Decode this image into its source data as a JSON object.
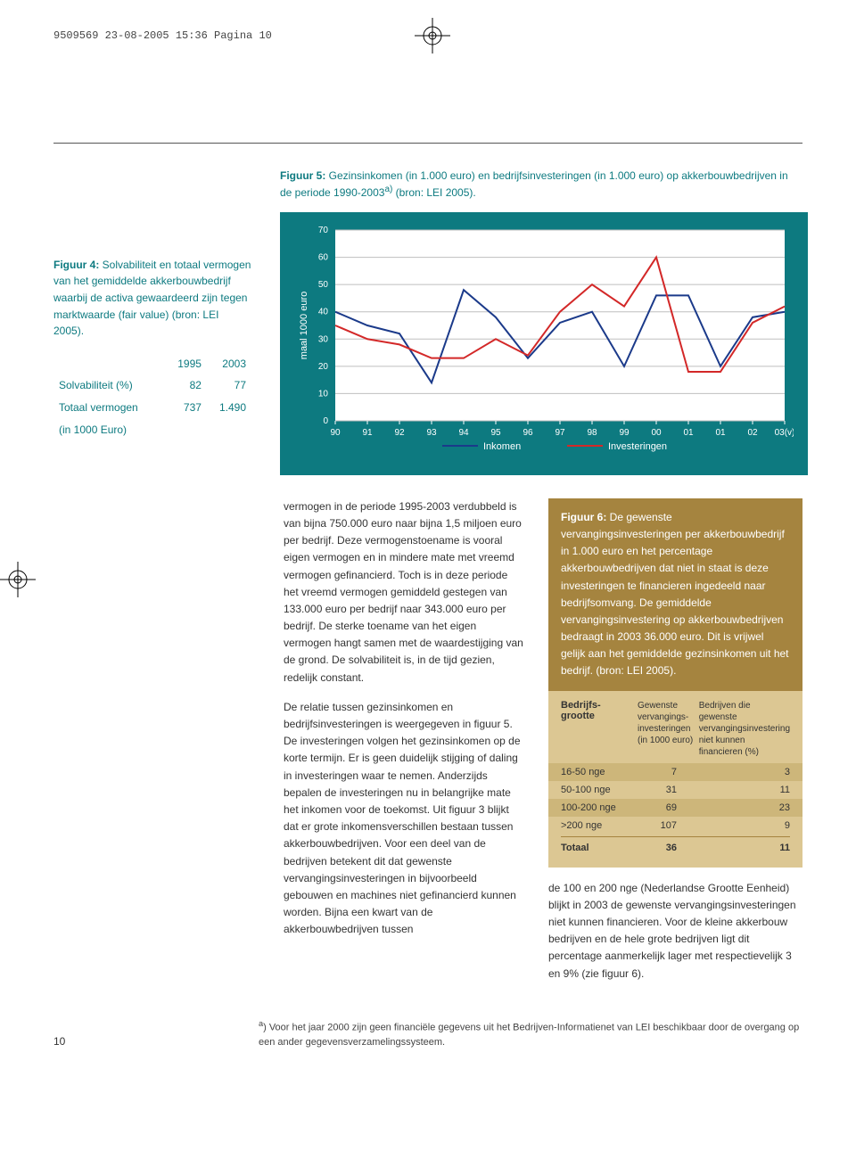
{
  "meta_header": "9509569  23-08-2005  15:36  Pagina 10",
  "top_rule": true,
  "figure5": {
    "title_prefix": "Figuur 5:",
    "title_rest": " Gezinsinkomen (in 1.000 euro) en bedrijfsinvesteringen (in 1.000 euro) op akkerbouwbedrijven in de periode 1990-2003",
    "title_sup": "a)",
    "title_after": " (bron: LEI 2005).",
    "type": "line",
    "ylabel": "maal 1000 euro",
    "y_ticks": [
      0,
      10,
      20,
      30,
      40,
      50,
      60,
      70
    ],
    "x_labels": [
      "90",
      "91",
      "92",
      "93",
      "94",
      "95",
      "96",
      "97",
      "98",
      "99",
      "00",
      "01",
      "01",
      "02",
      "03(v)"
    ],
    "series": [
      {
        "name": "Inkomen",
        "color": "#1b3a8a",
        "values": [
          40,
          35,
          32,
          14,
          48,
          38,
          23,
          36,
          40,
          20,
          46,
          46,
          20,
          38,
          40
        ]
      },
      {
        "name": "Investeringen",
        "color": "#d32828",
        "values": [
          35,
          30,
          28,
          23,
          23,
          30,
          24,
          40,
          50,
          42,
          60,
          18,
          18,
          36,
          42
        ]
      }
    ],
    "legend": [
      "Inkomen",
      "Investeringen"
    ],
    "bg_color": "#0d7a80",
    "plot_bg": "#ffffff",
    "grid_color": "#bfbfbf"
  },
  "figure4": {
    "title_prefix": "Figuur 4:",
    "title_rest": " Solvabiliteit en totaal vermogen van het gemiddelde akkerbouwbedrijf waarbij de activa gewaardeerd zijn tegen marktwaarde (fair value) (bron: LEI 2005).",
    "columns": [
      "",
      "1995",
      "2003"
    ],
    "rows": [
      [
        "Solvabiliteit (%)",
        "82",
        "77"
      ],
      [
        "Totaal vermogen",
        "737",
        "1.490"
      ],
      [
        "(in 1000 Euro)",
        "",
        ""
      ]
    ]
  },
  "body": {
    "p1": "vermogen in de periode 1995-2003 verdubbeld is van bijna 750.000 euro naar bijna 1,5 miljoen euro per bedrijf. Deze vermogenstoename is vooral eigen vermogen en in mindere mate met vreemd vermogen gefinancierd. Toch is in deze periode het vreemd vermogen gemiddeld gestegen van 133.000 euro per bedrijf naar 343.000 euro per bedrijf. De sterke toename van het eigen vermogen hangt samen met de waardestijging van de grond. De solvabiliteit is, in de tijd gezien, redelijk constant.",
    "p2": "De relatie tussen gezinsinkomen en bedrijfsinvesteringen is weergegeven in figuur 5. De investeringen volgen het gezinsinkomen op de korte termijn. Er is geen duidelijk stijging of daling in investeringen waar te nemen. Anderzijds bepalen de investeringen nu in belangrijke mate het inkomen voor de toekomst. Uit figuur 3 blijkt dat er grote inkomensverschillen bestaan tussen akkerbouwbedrijven. Voor een deel van de bedrijven betekent dit dat gewenste vervangingsinvesteringen in bijvoorbeeld gebouwen en machines niet gefinancierd kunnen worden. Bijna een kwart van de akkerbouwbedrijven tussen"
  },
  "figure6": {
    "title_prefix": "Figuur 6:",
    "title_rest": " De gewenste vervangingsinvesteringen per akkerbouwbedrijf in 1.000 euro en het percentage akkerbouwbedrijven dat niet in staat is deze investeringen te financieren ingedeeld naar bedrijfsomvang. De gemiddelde vervangingsinvestering op akkerbouwbedrijven bedraagt in 2003 36.000 euro. Dit is vrijwel gelijk aan het gemiddelde gezinsinkomen uit het bedrijf. (bron: LEI 2005).",
    "head_c1": "Bedrijfs-grootte",
    "head_c2": "Gewenste vervangings-investeringen (in 1000 euro)",
    "head_c3": "Bedrijven die gewenste vervangingsinvestering niet kunnen financieren (%)",
    "rows": [
      {
        "c1": "16-50 nge",
        "c2": "7",
        "c3": "3",
        "alt": true
      },
      {
        "c1": "50-100 nge",
        "c2": "31",
        "c3": "11",
        "alt": false
      },
      {
        "c1": "100-200 nge",
        "c2": "69",
        "c3": "23",
        "alt": true
      },
      {
        "c1": ">200 nge",
        "c2": "107",
        "c3": "9",
        "alt": false
      }
    ],
    "total": {
      "c1": "Totaal",
      "c2": "36",
      "c3": "11"
    }
  },
  "after_table": "de 100 en 200 nge (Nederlandse Grootte Eenheid) blijkt in 2003 de gewenste vervangingsinvesteringen niet kunnen financieren. Voor de kleine akkerbouw bedrijven en de hele grote bedrijven ligt dit percentage aanmerkelijk lager met respectievelijk 3 en 9% (zie figuur 6).",
  "footnote_sup": "a",
  "footnote": ") Voor het jaar 2000 zijn geen financiële gegevens uit het Bedrijven-Informatienet van LEI beschikbaar door de overgang op een ander gegevensverzamelingssysteem.",
  "page_number": "10"
}
